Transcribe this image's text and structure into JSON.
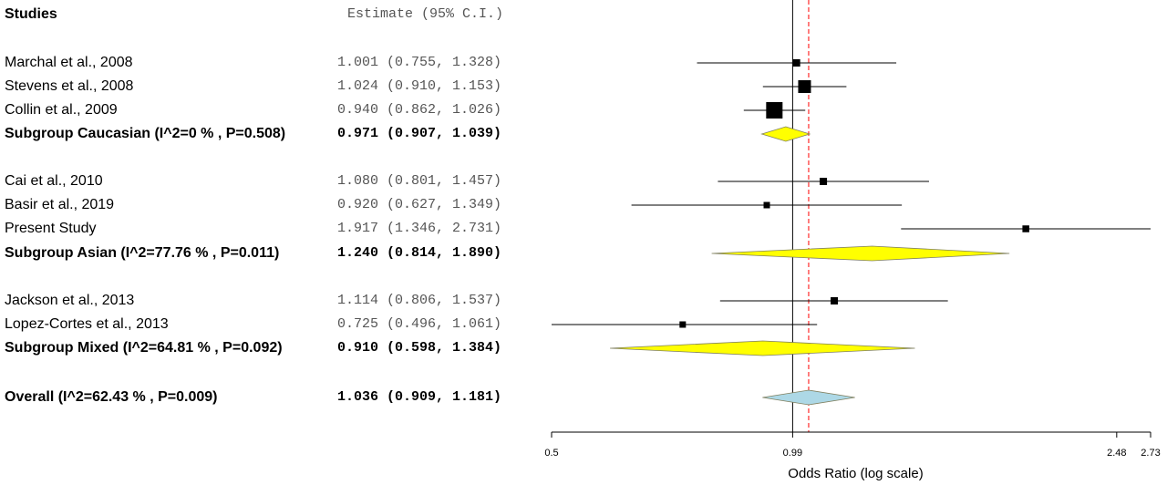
{
  "header": {
    "studies_label": "Studies",
    "estimate_label": "Estimate (95% C.I.)"
  },
  "colors": {
    "subgroup_fill": "#ffff00",
    "overall_fill": "#add8e6",
    "reference_line": "#ff0000"
  },
  "chart_data": {
    "type": "forest",
    "xlabel": "Odds Ratio (log scale)",
    "x_scale": "log",
    "xlim": [
      0.5,
      2.73
    ],
    "x_ticks": [
      "0.5",
      "0.99",
      "2.48",
      "2.73"
    ],
    "null_line": 0.99,
    "pooled_line": 1.036,
    "rows": [
      {
        "kind": "study",
        "label": "Marchal et al., 2008",
        "estimate_text": "1.001 (0.755, 1.328)",
        "or": 1.001,
        "lo": 0.755,
        "hi": 1.328,
        "weight": 1
      },
      {
        "kind": "study",
        "label": "Stevens et al., 2008",
        "estimate_text": "1.024 (0.910, 1.153)",
        "or": 1.024,
        "lo": 0.91,
        "hi": 1.153,
        "weight": 2.2
      },
      {
        "kind": "study",
        "label": "Collin et al., 2009",
        "estimate_text": "0.940 (0.862, 1.026)",
        "or": 0.94,
        "lo": 0.862,
        "hi": 1.026,
        "weight": 3
      },
      {
        "kind": "subgroup",
        "label": "Subgroup Caucasian (I^2=0 % , P=0.508)",
        "estimate_text": "0.971 (0.907, 1.039)",
        "or": 0.971,
        "lo": 0.907,
        "hi": 1.039,
        "pred_lo": 0.907,
        "pred_hi": 1.039
      },
      {
        "kind": "study",
        "label": "Cai et al., 2010",
        "estimate_text": "1.080 (0.801, 1.457)",
        "or": 1.08,
        "lo": 0.801,
        "hi": 1.457,
        "weight": 1
      },
      {
        "kind": "study",
        "label": "Basir et al., 2019",
        "estimate_text": "0.920 (0.627, 1.349)",
        "or": 0.92,
        "lo": 0.627,
        "hi": 1.349,
        "weight": 0.8
      },
      {
        "kind": "study",
        "label": "Present Study",
        "estimate_text": "1.917 (1.346, 2.731)",
        "or": 1.917,
        "lo": 1.346,
        "hi": 2.731,
        "weight": 0.9
      },
      {
        "kind": "subgroup",
        "label": "Subgroup Asian (I^2=77.76 % , P=0.011)",
        "estimate_text": "1.240 (0.814, 1.890)",
        "or": 1.24,
        "lo": 0.814,
        "hi": 1.89,
        "pred_lo": 0.787,
        "pred_hi": 1.83
      },
      {
        "kind": "study",
        "label": "Jackson et al., 2013",
        "estimate_text": "1.114 (0.806, 1.537)",
        "or": 1.114,
        "lo": 0.806,
        "hi": 1.537,
        "weight": 1
      },
      {
        "kind": "study",
        "label": "Lopez-Cortes et al., 2013",
        "estimate_text": "0.725 (0.496, 1.061)",
        "or": 0.725,
        "lo": 0.496,
        "hi": 1.061,
        "weight": 0.8
      },
      {
        "kind": "subgroup",
        "label": "Subgroup Mixed (I^2=64.81 % , P=0.092)",
        "estimate_text": "0.910 (0.598, 1.384)",
        "or": 0.91,
        "lo": 0.598,
        "hi": 1.384,
        "pred_lo": 0.59,
        "pred_hi": 1.4
      },
      {
        "kind": "overall",
        "label": "Overall (I^2=62.43 % , P=0.009)",
        "estimate_text": "1.036 (0.909, 1.181)",
        "or": 1.036,
        "lo": 0.909,
        "hi": 1.181,
        "pred_lo": 0.909,
        "pred_hi": 1.181
      }
    ]
  }
}
